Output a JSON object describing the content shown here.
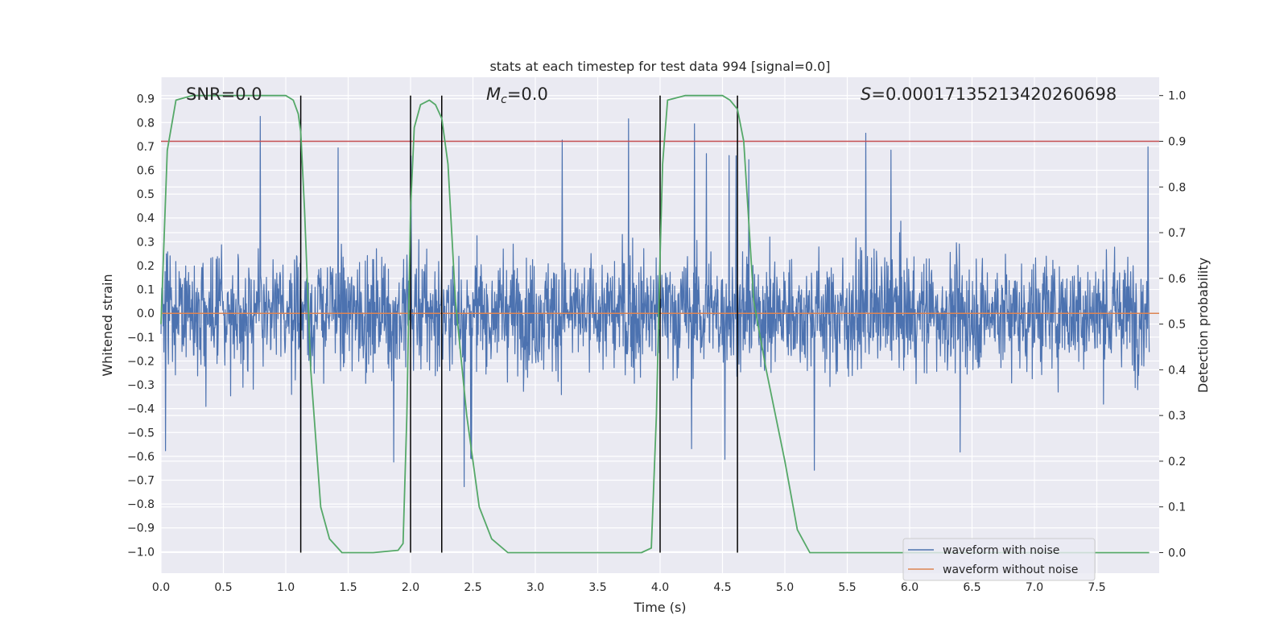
{
  "chart_data": {
    "type": "line",
    "title": "stats at each timestep for test data 994 [signal=0.0]",
    "xlabel": "Time (s)",
    "ylabel": "Whitened strain",
    "y2label": "Detection probability",
    "xlim": [
      0.0,
      8.0
    ],
    "ylim": [
      -1.09,
      0.99
    ],
    "y2lim": [
      -0.045,
      1.04
    ],
    "xticks": [
      "0.0",
      "0.5",
      "1.0",
      "1.5",
      "2.0",
      "2.5",
      "3.0",
      "3.5",
      "4.0",
      "4.5",
      "5.0",
      "5.5",
      "6.0",
      "6.5",
      "7.0",
      "7.5"
    ],
    "yticks": [
      "0.9",
      "0.8",
      "0.7",
      "0.6",
      "0.5",
      "0.4",
      "0.3",
      "0.2",
      "0.1",
      "0.0",
      "−0.1",
      "−0.2",
      "−0.3",
      "−0.4",
      "−0.5",
      "−0.6",
      "−0.7",
      "−0.8",
      "−0.9",
      "−1.0"
    ],
    "y2ticks": [
      "1.0",
      "0.9",
      "0.8",
      "0.7",
      "0.6",
      "0.5",
      "0.4",
      "0.3",
      "0.2",
      "0.1",
      "0.0"
    ],
    "grid": true,
    "legend_position": "lower-right",
    "annotations": {
      "snr": "SNR=0.0",
      "mc": "=0.0",
      "mc_symbol": "M",
      "mc_sub": "c",
      "s": "=0.00017135213420260698",
      "s_symbol": "S"
    },
    "series": [
      {
        "name": "waveform with noise",
        "color": "#4c72b0",
        "noise_envelope": [
          -0.73,
          0.83
        ],
        "n_points": 8192
      },
      {
        "name": "waveform without noise",
        "color": "#dd8452",
        "values_constant": 0.0
      }
    ],
    "detection_probability": {
      "color": "#55a868",
      "axis": "right",
      "x": [
        0.0,
        0.05,
        0.12,
        0.25,
        0.4,
        0.8,
        1.0,
        1.06,
        1.1,
        1.12,
        1.15,
        1.2,
        1.28,
        1.35,
        1.45,
        1.7,
        1.9,
        1.94,
        1.97,
        2.0,
        2.03,
        2.08,
        2.15,
        2.2,
        2.25,
        2.3,
        2.36,
        2.45,
        2.55,
        2.65,
        2.78,
        3.0,
        3.85,
        3.93,
        3.97,
        4.0,
        4.02,
        4.06,
        4.2,
        4.5,
        4.56,
        4.62,
        4.67,
        4.75,
        4.85,
        5.0,
        5.1,
        5.2,
        5.3,
        5.6,
        7.92
      ],
      "values": [
        0.5,
        0.88,
        0.99,
        1.0,
        1.0,
        1.0,
        1.0,
        0.99,
        0.96,
        0.92,
        0.75,
        0.4,
        0.1,
        0.03,
        0.0,
        0.0,
        0.005,
        0.02,
        0.3,
        0.75,
        0.93,
        0.98,
        0.99,
        0.98,
        0.95,
        0.85,
        0.55,
        0.3,
        0.1,
        0.03,
        0.0,
        0.0,
        0.0,
        0.01,
        0.3,
        0.65,
        0.85,
        0.99,
        1.0,
        1.0,
        0.99,
        0.97,
        0.9,
        0.55,
        0.4,
        0.2,
        0.05,
        0.0,
        0.0,
        0.0,
        0.0
      ]
    },
    "threshold": {
      "value": 0.9,
      "axis": "right",
      "color": "#c44e52"
    },
    "vertical_lines": [
      1.12,
      2.0,
      2.25,
      4.0,
      4.62
    ],
    "vertical_line_range": [
      0.0,
      1.0
    ]
  }
}
